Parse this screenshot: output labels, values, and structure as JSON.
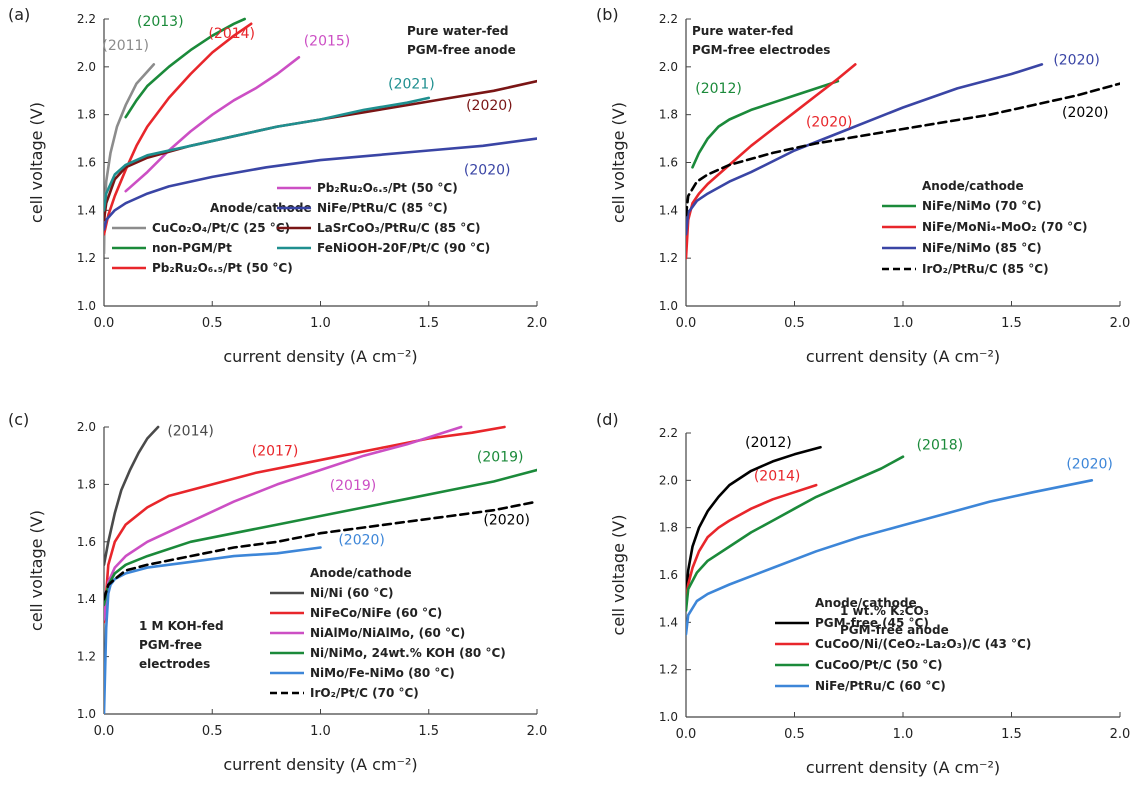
{
  "chart_data": [
    {
      "panel": "(a)",
      "type": "line",
      "xlabel": "current density (A cm⁻²)",
      "ylabel": "cell voltage (V)",
      "xlim": [
        0,
        2
      ],
      "ylim": [
        1.0,
        2.2
      ],
      "xticks": [
        "0.0",
        "0.5",
        "1.0",
        "1.5",
        "2.0"
      ],
      "yticks": [
        "1.0",
        "1.2",
        "1.4",
        "1.6",
        "1.8",
        "2.0",
        "2.2"
      ],
      "note": [
        "Pure water-fed",
        "PGM-free anode"
      ],
      "legend_title": "Anode/cathode",
      "series": [
        {
          "name": "CuCo₂O₄/Pt/C (25 °C)",
          "color": "#8c8c8c",
          "dash": false,
          "year": "(2011)",
          "x": [
            0,
            0.003,
            0.01,
            0.03,
            0.06,
            0.1,
            0.15,
            0.2,
            0.23
          ],
          "y": [
            1.22,
            1.4,
            1.52,
            1.64,
            1.75,
            1.84,
            1.93,
            1.98,
            2.01
          ]
        },
        {
          "name": "non-PGM/Pt",
          "color": "#1b8a3a",
          "dash": false,
          "year": "(2013)",
          "x": [
            0.1,
            0.15,
            0.2,
            0.3,
            0.4,
            0.5,
            0.6,
            0.65
          ],
          "y": [
            1.79,
            1.86,
            1.92,
            2.0,
            2.07,
            2.13,
            2.18,
            2.2
          ]
        },
        {
          "name": "Pb₂Ru₂O₆.₅/Pt (50 °C)",
          "color": "#e8262b",
          "dash": false,
          "year": "(2014)",
          "x": [
            0,
            0.02,
            0.05,
            0.1,
            0.15,
            0.2,
            0.3,
            0.4,
            0.5,
            0.6,
            0.68
          ],
          "y": [
            1.3,
            1.38,
            1.46,
            1.57,
            1.67,
            1.75,
            1.87,
            1.97,
            2.06,
            2.13,
            2.18
          ]
        },
        {
          "name": "Pb₂Ru₂O₆.₅/Pt (50 °C)",
          "color": "#cc4fc4",
          "dash": false,
          "year": "(2015)",
          "x": [
            0.1,
            0.2,
            0.3,
            0.4,
            0.5,
            0.6,
            0.7,
            0.8,
            0.9
          ],
          "y": [
            1.48,
            1.56,
            1.65,
            1.73,
            1.8,
            1.86,
            1.91,
            1.97,
            2.04
          ]
        },
        {
          "name": "NiFe/PtRu/C (85 °C)",
          "color": "#3a45a5",
          "dash": false,
          "year": "(2020)",
          "x": [
            0,
            0.01,
            0.05,
            0.1,
            0.2,
            0.3,
            0.5,
            0.75,
            1.0,
            1.25,
            1.5,
            1.75,
            2.0
          ],
          "y": [
            1.32,
            1.36,
            1.4,
            1.43,
            1.47,
            1.5,
            1.54,
            1.58,
            1.61,
            1.63,
            1.65,
            1.67,
            1.7
          ]
        },
        {
          "name": "LaSrCoO₃/PtRu/C (85 °C)",
          "color": "#7a1515",
          "dash": false,
          "year": "(2020)",
          "x": [
            0,
            0.01,
            0.05,
            0.1,
            0.2,
            0.4,
            0.6,
            0.8,
            1.0,
            1.2,
            1.4,
            1.6,
            1.8,
            2.0
          ],
          "y": [
            1.36,
            1.43,
            1.53,
            1.58,
            1.62,
            1.67,
            1.71,
            1.75,
            1.78,
            1.81,
            1.84,
            1.87,
            1.9,
            1.94
          ]
        },
        {
          "name": "FeNiOOH-20F/Pt/C (90 °C)",
          "color": "#1f8f8f",
          "dash": false,
          "year": "(2021)",
          "x": [
            0,
            0.01,
            0.05,
            0.1,
            0.2,
            0.4,
            0.6,
            0.8,
            1.0,
            1.2,
            1.4,
            1.5
          ],
          "y": [
            1.4,
            1.47,
            1.55,
            1.59,
            1.63,
            1.67,
            1.71,
            1.75,
            1.78,
            1.82,
            1.85,
            1.87
          ]
        }
      ],
      "year_labels": [
        {
          "text": "(2011)",
          "color": "#8c8c8c",
          "x": 0.1,
          "y": 2.07
        },
        {
          "text": "(2013)",
          "color": "#1b8a3a",
          "x": 0.26,
          "y": 2.17
        },
        {
          "text": "(2014)",
          "color": "#e8262b",
          "x": 0.59,
          "y": 2.12
        },
        {
          "text": "(2015)",
          "color": "#cc4fc4",
          "x": 1.03,
          "y": 2.09
        },
        {
          "text": "(2021)",
          "color": "#1f8f8f",
          "x": 1.42,
          "y": 1.91
        },
        {
          "text": "(2020)",
          "color": "#7a1515",
          "x": 1.78,
          "y": 1.82
        },
        {
          "text": "(2020)",
          "color": "#3a45a5",
          "x": 1.77,
          "y": 1.55
        }
      ]
    },
    {
      "panel": "(b)",
      "type": "line",
      "xlabel": "current density (A cm⁻²)",
      "ylabel": "cell voltage (V)",
      "xlim": [
        0,
        2
      ],
      "ylim": [
        1.0,
        2.2
      ],
      "xticks": [
        "0.0",
        "0.5",
        "1.0",
        "1.5",
        "2.0"
      ],
      "yticks": [
        "1.0",
        "1.2",
        "1.4",
        "1.6",
        "1.8",
        "2.0",
        "2.2"
      ],
      "note": [
        "Pure water-fed",
        "PGM-free electrodes"
      ],
      "legend_title": "Anode/cathode",
      "series": [
        {
          "name": "NiFe/NiMo (70 °C)",
          "color": "#1b8a3a",
          "dash": false,
          "year": "(2012)",
          "x": [
            0.03,
            0.06,
            0.1,
            0.15,
            0.2,
            0.3,
            0.4,
            0.5,
            0.6,
            0.7
          ],
          "y": [
            1.58,
            1.64,
            1.7,
            1.75,
            1.78,
            1.82,
            1.85,
            1.88,
            1.91,
            1.94
          ]
        },
        {
          "name": "NiFe/MoNi₄-MoO₂ (70 °C)",
          "color": "#e8262b",
          "dash": false,
          "year": "(2020)",
          "x": [
            0,
            0.01,
            0.03,
            0.06,
            0.1,
            0.2,
            0.3,
            0.4,
            0.5,
            0.6,
            0.7,
            0.78
          ],
          "y": [
            1.2,
            1.36,
            1.43,
            1.47,
            1.51,
            1.59,
            1.67,
            1.74,
            1.81,
            1.88,
            1.95,
            2.01
          ]
        },
        {
          "name": "NiFe/NiMo (85 °C)",
          "color": "#3a45a5",
          "dash": false,
          "year": "(2020)",
          "x": [
            0,
            0.01,
            0.05,
            0.1,
            0.2,
            0.3,
            0.5,
            0.75,
            1.0,
            1.25,
            1.5,
            1.64
          ],
          "y": [
            1.3,
            1.39,
            1.44,
            1.47,
            1.52,
            1.56,
            1.65,
            1.74,
            1.83,
            1.91,
            1.97,
            2.01
          ]
        },
        {
          "name": "IrO₂/PtRu/C (85 °C)",
          "color": "#000000",
          "dash": true,
          "year": "(2020)",
          "x": [
            0,
            0.01,
            0.05,
            0.1,
            0.2,
            0.4,
            0.6,
            0.8,
            1.0,
            1.2,
            1.4,
            1.6,
            1.8,
            2.0
          ],
          "y": [
            1.38,
            1.46,
            1.52,
            1.55,
            1.59,
            1.64,
            1.68,
            1.71,
            1.74,
            1.77,
            1.8,
            1.84,
            1.88,
            1.93
          ]
        }
      ],
      "year_labels": [
        {
          "text": "(2012)",
          "color": "#1b8a3a",
          "x": 0.15,
          "y": 1.89
        },
        {
          "text": "(2020)",
          "color": "#e8262b",
          "x": 0.66,
          "y": 1.75
        },
        {
          "text": "(2020)",
          "color": "#3a45a5",
          "x": 1.8,
          "y": 2.01
        },
        {
          "text": "(2020)",
          "color": "#000000",
          "x": 1.84,
          "y": 1.79
        }
      ]
    },
    {
      "panel": "(c)",
      "type": "line",
      "xlabel": "current density (A cm⁻²)",
      "ylabel": "cell voltage (V)",
      "xlim": [
        0,
        2
      ],
      "ylim": [
        1.0,
        2.0
      ],
      "xticks": [
        "0.0",
        "0.5",
        "1.0",
        "1.5",
        "2.0"
      ],
      "yticks": [
        "1.0",
        "1.2",
        "1.4",
        "1.6",
        "1.8",
        "2.0"
      ],
      "note": [
        "1 M KOH-fed",
        "PGM-free",
        "electrodes"
      ],
      "legend_title": "Anode/cathode",
      "series": [
        {
          "name": "Ni/Ni (60 °C)",
          "color": "#4a4a4a",
          "dash": false,
          "year": "(2014)",
          "x": [
            0,
            0.02,
            0.05,
            0.08,
            0.12,
            0.16,
            0.2,
            0.25
          ],
          "y": [
            1.52,
            1.6,
            1.7,
            1.78,
            1.85,
            1.91,
            1.96,
            2.0
          ]
        },
        {
          "name": "NiFeCo/NiFe (60 °C)",
          "color": "#e8262b",
          "dash": false,
          "year": "(2017)",
          "x": [
            0,
            0.02,
            0.05,
            0.1,
            0.2,
            0.3,
            0.5,
            0.7,
            0.9,
            1.1,
            1.3,
            1.5,
            1.7,
            1.85
          ],
          "y": [
            1.32,
            1.52,
            1.6,
            1.66,
            1.72,
            1.76,
            1.8,
            1.84,
            1.87,
            1.9,
            1.93,
            1.96,
            1.98,
            2.0
          ]
        },
        {
          "name": "NiAlMo/NiAlMo, (60 °C)",
          "color": "#cc4fc4",
          "dash": false,
          "year": "(2019)",
          "x": [
            0,
            0.02,
            0.05,
            0.1,
            0.2,
            0.4,
            0.6,
            0.8,
            1.0,
            1.2,
            1.4,
            1.65
          ],
          "y": [
            1.33,
            1.46,
            1.51,
            1.55,
            1.6,
            1.67,
            1.74,
            1.8,
            1.85,
            1.9,
            1.94,
            2.0
          ]
        },
        {
          "name": "Ni/NiMo, 24wt.% KOH (80 °C)",
          "color": "#1b8a3a",
          "dash": false,
          "year": "(2019)",
          "x": [
            0,
            0.02,
            0.05,
            0.1,
            0.2,
            0.4,
            0.6,
            0.8,
            1.0,
            1.2,
            1.4,
            1.6,
            1.8,
            2.0
          ],
          "y": [
            1.38,
            1.45,
            1.49,
            1.52,
            1.55,
            1.6,
            1.63,
            1.66,
            1.69,
            1.72,
            1.75,
            1.78,
            1.81,
            1.85
          ]
        },
        {
          "name": "NiMo/Fe-NiMo (80 °C)",
          "color": "#3d86d8",
          "dash": false,
          "year": "(2020)",
          "x": [
            0,
            0.01,
            0.02,
            0.03,
            0.05,
            0.1,
            0.2,
            0.4,
            0.6,
            0.8,
            1.0
          ],
          "y": [
            1.0,
            1.3,
            1.42,
            1.45,
            1.47,
            1.49,
            1.51,
            1.53,
            1.55,
            1.56,
            1.58
          ]
        },
        {
          "name": "IrO₂/Pt/C (70 °C)",
          "color": "#000000",
          "dash": true,
          "year": "(2020)",
          "x": [
            0,
            0.02,
            0.05,
            0.1,
            0.2,
            0.4,
            0.6,
            0.8,
            1.0,
            1.2,
            1.4,
            1.6,
            1.8,
            2.0
          ],
          "y": [
            1.4,
            1.45,
            1.47,
            1.5,
            1.52,
            1.55,
            1.58,
            1.6,
            1.63,
            1.65,
            1.67,
            1.69,
            1.71,
            1.74
          ]
        }
      ],
      "year_labels": [
        {
          "text": "(2014)",
          "color": "#4a4a4a",
          "x": 0.4,
          "y": 1.97
        },
        {
          "text": "(2017)",
          "color": "#e8262b",
          "x": 0.79,
          "y": 1.9
        },
        {
          "text": "(2019)",
          "color": "#cc4fc4",
          "x": 1.15,
          "y": 1.78
        },
        {
          "text": "(2019)",
          "color": "#1b8a3a",
          "x": 1.83,
          "y": 1.88
        },
        {
          "text": "(2020)",
          "color": "#000000",
          "x": 1.86,
          "y": 1.66
        },
        {
          "text": "(2020)",
          "color": "#3d86d8",
          "x": 1.19,
          "y": 1.59
        }
      ]
    },
    {
      "panel": "(d)",
      "type": "line",
      "xlabel": "current density (A cm⁻²)",
      "ylabel": "cell voltage (V)",
      "xlim": [
        0,
        2
      ],
      "ylim": [
        1.0,
        2.2
      ],
      "xticks": [
        "0.0",
        "0.5",
        "1.0",
        "1.5",
        "2.0"
      ],
      "yticks": [
        "1.0",
        "1.2",
        "1.4",
        "1.6",
        "1.8",
        "2.0",
        "2.2"
      ],
      "note": [
        "1 wt.% K₂CO₃",
        "PGM-free anode"
      ],
      "legend_title": "Anode/cathode",
      "series": [
        {
          "name": "PGM-free (45 °C)",
          "color": "#000000",
          "dash": false,
          "year": "(2012)",
          "x": [
            0,
            0.01,
            0.03,
            0.06,
            0.1,
            0.15,
            0.2,
            0.3,
            0.4,
            0.5,
            0.62
          ],
          "y": [
            1.5,
            1.62,
            1.72,
            1.8,
            1.87,
            1.93,
            1.98,
            2.04,
            2.08,
            2.11,
            2.14
          ]
        },
        {
          "name": "CuCoO/Ni/(CeO₂-La₂O₃)/C (43 °C)",
          "color": "#e8262b",
          "dash": false,
          "year": "(2014)",
          "x": [
            0,
            0.01,
            0.03,
            0.06,
            0.1,
            0.15,
            0.2,
            0.3,
            0.4,
            0.5,
            0.6
          ],
          "y": [
            1.5,
            1.56,
            1.63,
            1.7,
            1.76,
            1.8,
            1.83,
            1.88,
            1.92,
            1.95,
            1.98
          ]
        },
        {
          "name": "CuCoO/Pt/C (50 °C)",
          "color": "#1b8a3a",
          "dash": false,
          "year": "(2018)",
          "x": [
            0,
            0.01,
            0.05,
            0.1,
            0.2,
            0.3,
            0.4,
            0.5,
            0.6,
            0.7,
            0.8,
            0.9,
            1.0
          ],
          "y": [
            1.45,
            1.54,
            1.61,
            1.66,
            1.72,
            1.78,
            1.83,
            1.88,
            1.93,
            1.97,
            2.01,
            2.05,
            2.1
          ]
        },
        {
          "name": "NiFe/PtRu/C (60 °C)",
          "color": "#3d86d8",
          "dash": false,
          "year": "(2020)",
          "x": [
            0,
            0.01,
            0.05,
            0.1,
            0.2,
            0.4,
            0.6,
            0.8,
            1.0,
            1.2,
            1.4,
            1.6,
            1.87
          ],
          "y": [
            1.35,
            1.43,
            1.49,
            1.52,
            1.56,
            1.63,
            1.7,
            1.76,
            1.81,
            1.86,
            1.91,
            1.95,
            2.0
          ]
        }
      ],
      "year_labels": [
        {
          "text": "(2012)",
          "color": "#000000",
          "x": 0.38,
          "y": 2.14
        },
        {
          "text": "(2014)",
          "color": "#e8262b",
          "x": 0.42,
          "y": 2.0
        },
        {
          "text": "(2018)",
          "color": "#1b8a3a",
          "x": 1.17,
          "y": 2.13
        },
        {
          "text": "(2020)",
          "color": "#3d86d8",
          "x": 1.86,
          "y": 2.05
        }
      ]
    }
  ]
}
